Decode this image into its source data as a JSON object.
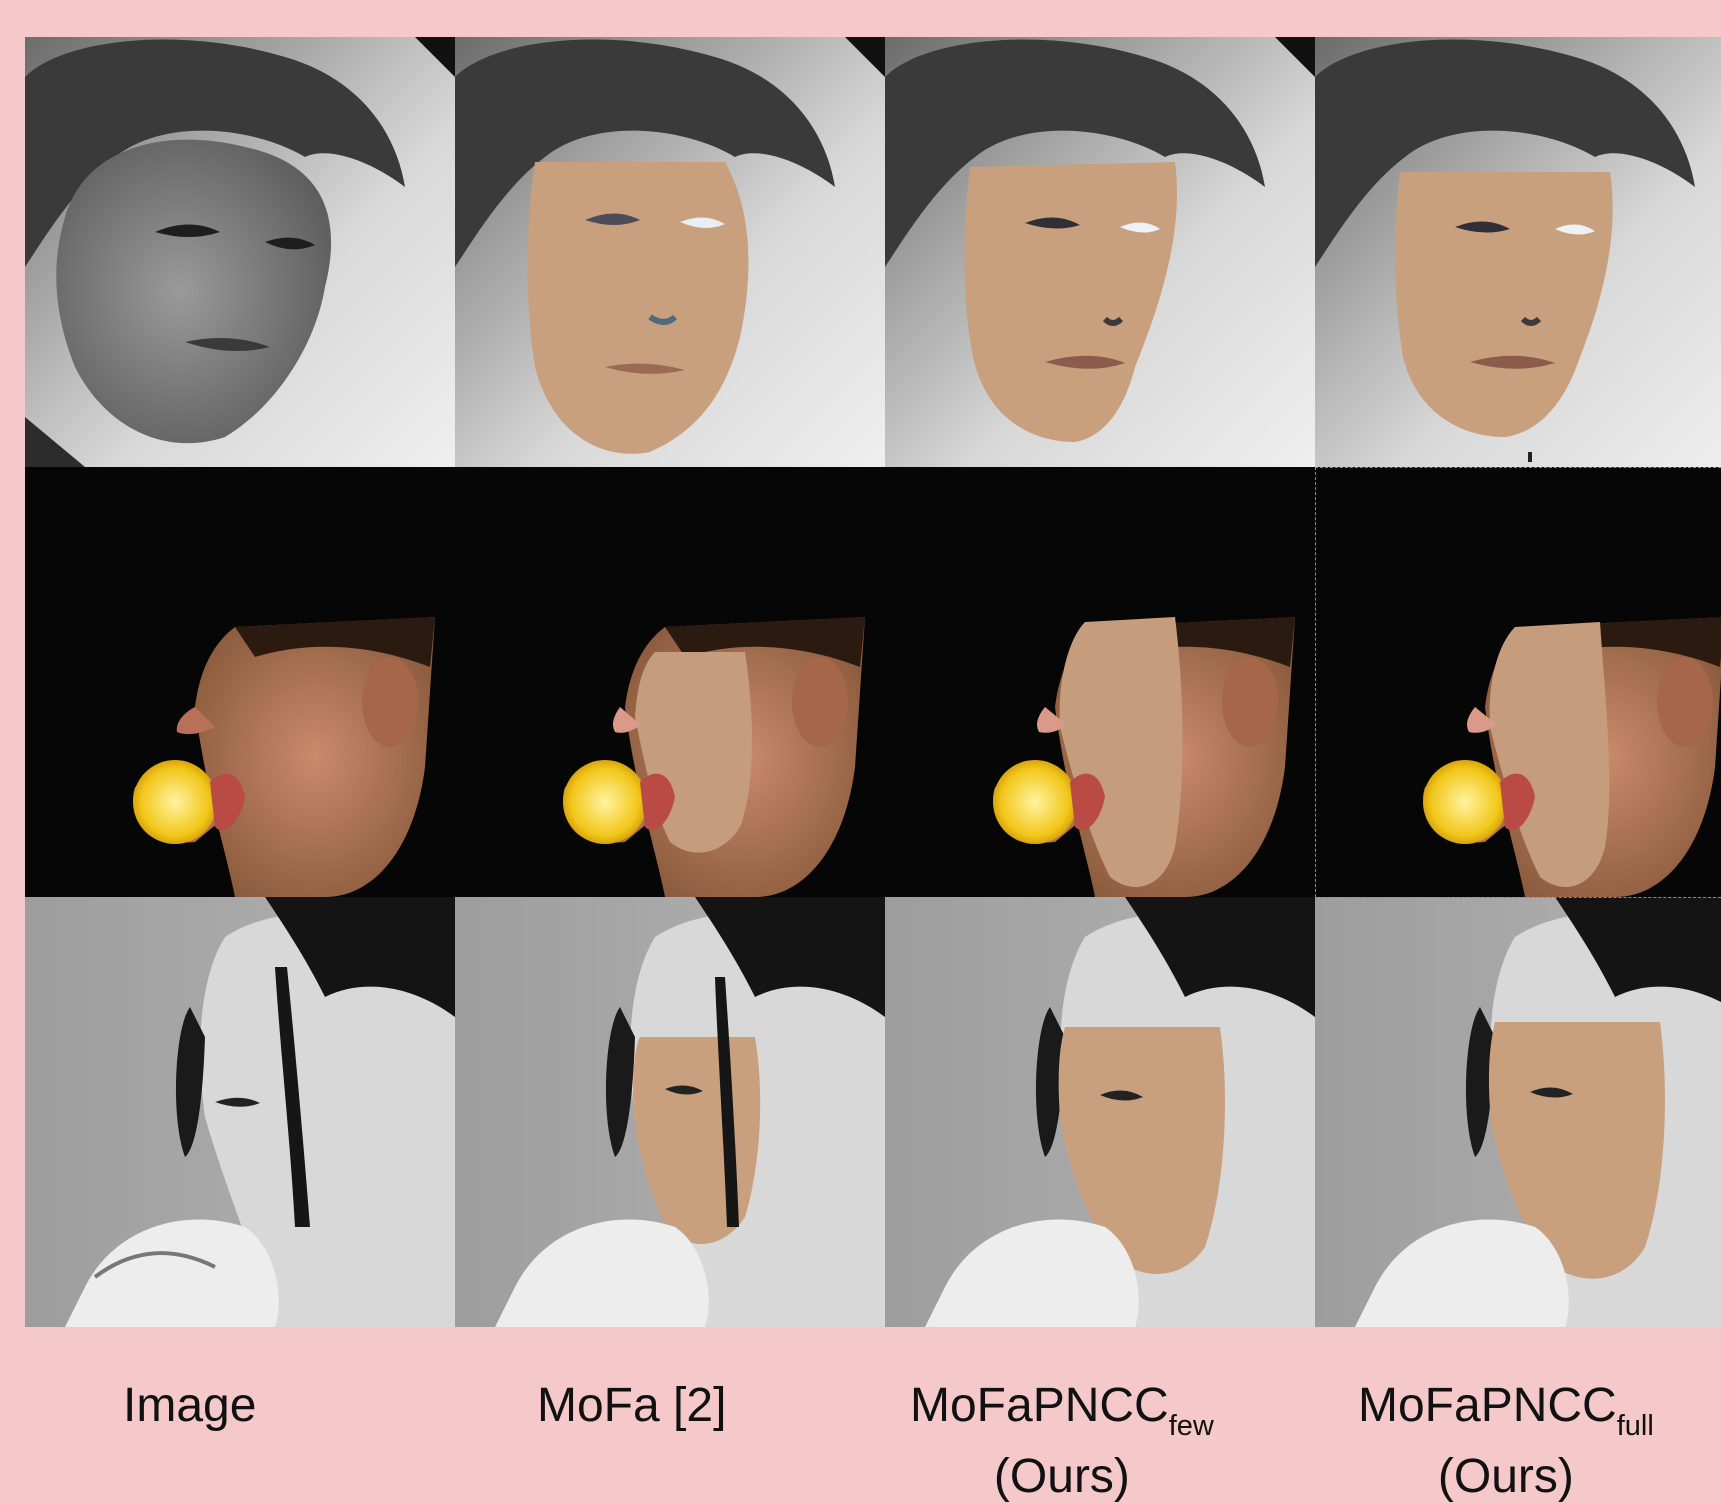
{
  "labels": {
    "image": "Image",
    "mofa": "MoFa [2]",
    "few_main": "MoFaPNCC",
    "few_sub": "few",
    "full_main": "MoFaPNCC",
    "full_sub": "full",
    "ours": "(Ours)"
  },
  "colors": {
    "background": "#f5c8ca",
    "skin_render": "#c9a07e",
    "dark_bg": "#060606",
    "gray_bg": "#a8a8a8"
  }
}
